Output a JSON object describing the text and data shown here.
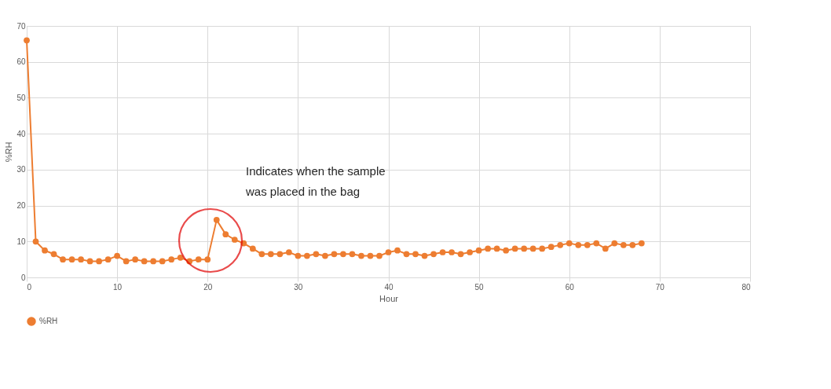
{
  "chart_data": {
    "type": "line",
    "xlabel": "Hour",
    "ylabel": "%RH",
    "x": [
      0,
      1,
      2,
      3,
      4,
      5,
      6,
      7,
      8,
      9,
      10,
      11,
      12,
      13,
      14,
      15,
      16,
      17,
      18,
      19,
      20,
      21,
      22,
      23,
      24,
      25,
      26,
      27,
      28,
      29,
      30,
      31,
      32,
      33,
      34,
      35,
      36,
      37,
      38,
      39,
      40,
      41,
      42,
      43,
      44,
      45,
      46,
      47,
      48,
      49,
      50,
      51,
      52,
      53,
      54,
      55,
      56,
      57,
      58,
      59,
      60,
      61,
      62,
      63,
      64,
      65,
      66,
      67,
      68
    ],
    "series": [
      {
        "name": "%RH",
        "color": "#ed7d31",
        "values": [
          66,
          10,
          7.5,
          6.5,
          5,
          5,
          5,
          4.5,
          4.5,
          5,
          6,
          4.5,
          5,
          4.5,
          4.5,
          4.5,
          5,
          5.5,
          4.5,
          5,
          5,
          16,
          12,
          10.5,
          9.5,
          8,
          6.5,
          6.5,
          6.5,
          7,
          6,
          6,
          6.5,
          6,
          6.5,
          6.5,
          6.5,
          6,
          6,
          6,
          7,
          7.5,
          6.5,
          6.5,
          6,
          6.5,
          7,
          7,
          6.5,
          7,
          7.5,
          8,
          8,
          7.5,
          8,
          8,
          8,
          8,
          8.5,
          9,
          9.5,
          9,
          9,
          9.5,
          8,
          9.5,
          9,
          9,
          9.5
        ]
      }
    ],
    "xlim": [
      0,
      80
    ],
    "xticks": [
      0,
      10,
      20,
      30,
      40,
      50,
      60,
      70,
      80
    ],
    "ylim": [
      0,
      70
    ],
    "yticks": [
      0,
      10,
      20,
      30,
      40,
      50,
      60,
      70
    ],
    "annotations": [
      "Indicates when the sample\nwas placed in the bag"
    ],
    "grid": true,
    "legend": "bottom",
    "marker": "circle",
    "line_style": "solid"
  }
}
